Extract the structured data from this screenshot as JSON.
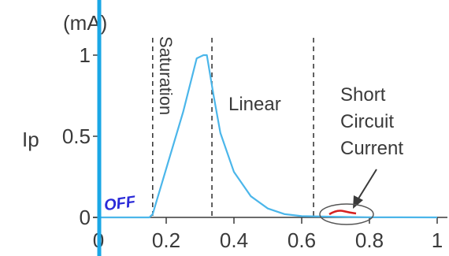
{
  "chart_data": {
    "type": "line",
    "xlabel": "",
    "ylabel": "Ip",
    "yunit": "(mA)",
    "xlim": [
      0,
      1.0
    ],
    "ylim": [
      0,
      1.0
    ],
    "xticks": [
      {
        "value": 0,
        "label": "0"
      },
      {
        "value": 0.2,
        "label": "0.2"
      },
      {
        "value": 0.4,
        "label": "0.4"
      },
      {
        "value": 0.6,
        "label": "0.6"
      },
      {
        "value": 0.8,
        "label": "0.8"
      },
      {
        "value": 1.0,
        "label": "1"
      }
    ],
    "yticks": [
      {
        "value": 0,
        "label": "0"
      },
      {
        "value": 0.5,
        "label": "0.5"
      },
      {
        "value": 1.0,
        "label": "1"
      }
    ],
    "series": [
      {
        "color": "#4bb6ea",
        "x": [
          0,
          0.15,
          0.16,
          0.2,
          0.25,
          0.29,
          0.31,
          0.32,
          0.34,
          0.36,
          0.4,
          0.45,
          0.5,
          0.55,
          0.6,
          0.7,
          0.8,
          1.0
        ],
        "values": [
          0,
          0,
          0.02,
          0.3,
          0.65,
          0.98,
          1.0,
          1.0,
          0.75,
          0.52,
          0.28,
          0.13,
          0.055,
          0.02,
          0.008,
          0.004,
          0.001,
          0
        ]
      }
    ],
    "regions": [
      {
        "label": "Saturation",
        "x": 0.16,
        "orientation": "vertical"
      },
      {
        "label": "Linear",
        "x": 0.335,
        "orientation": "horizontal"
      }
    ],
    "dividers": [
      0.16,
      0.335,
      0.635
    ],
    "annotations": {
      "short_circuit_line1": "Short",
      "short_circuit_line2": "Circuit",
      "short_circuit_line3": "Current",
      "short_circuit_x": [
        0.67,
        0.75
      ],
      "off_label": "OFF"
    },
    "colors": {
      "curve": "#4bb6ea",
      "overlay_line": "#1aa7e6",
      "handwriting": "#2a2ad8",
      "red_mark": "#d62020",
      "axis": "#3a3a3a"
    }
  }
}
